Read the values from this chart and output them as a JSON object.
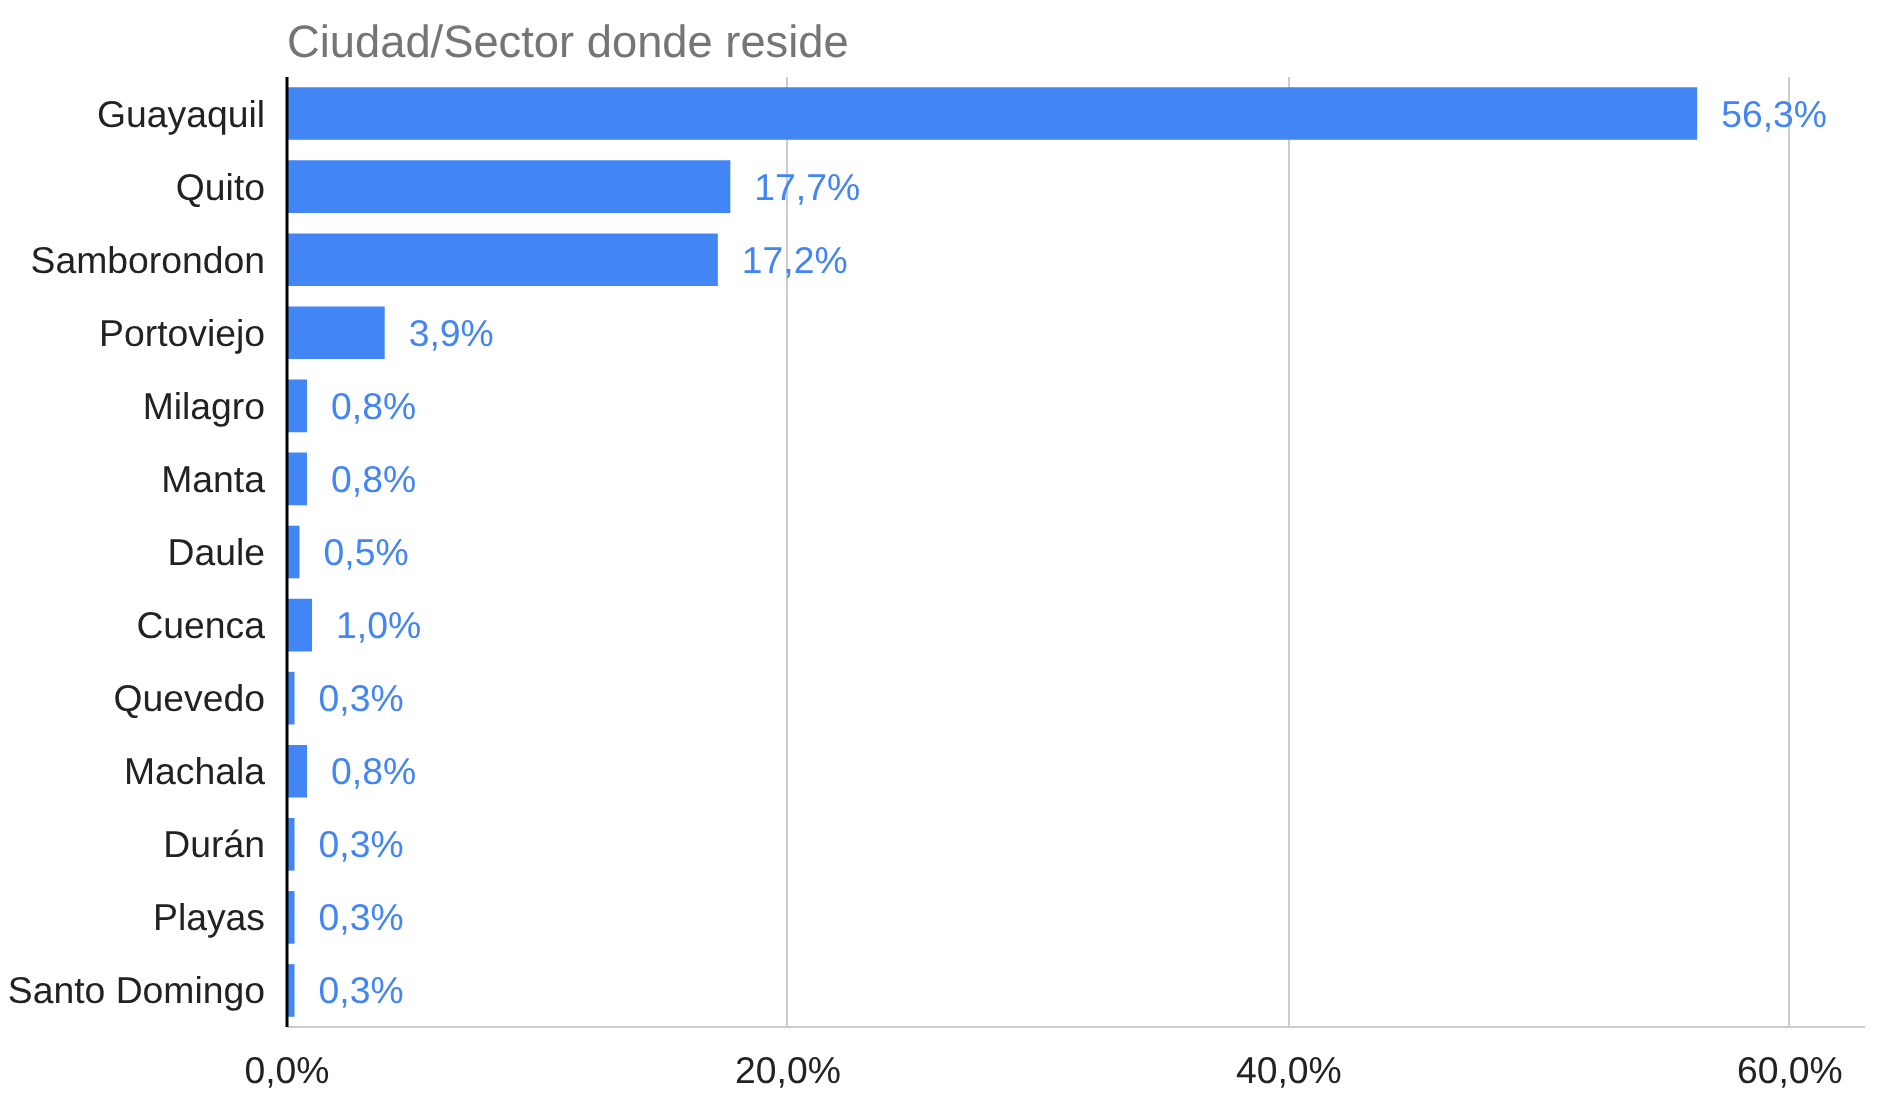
{
  "chart_data": {
    "type": "bar",
    "orientation": "horizontal",
    "title": "Ciudad/Sector donde reside",
    "categories": [
      "Guayaquil",
      "Quito",
      "Samborondon",
      "Portoviejo",
      "Milagro",
      "Manta",
      "Daule",
      "Cuenca",
      "Quevedo",
      "Machala",
      "Durán",
      "Playas",
      "Santo Domingo"
    ],
    "values": [
      56.3,
      17.7,
      17.2,
      3.9,
      0.8,
      0.8,
      0.5,
      1.0,
      0.3,
      0.8,
      0.3,
      0.3,
      0.3
    ],
    "value_labels": [
      "56,3%",
      "17,7%",
      "17,2%",
      "3,9%",
      "0,8%",
      "0,8%",
      "0,5%",
      "1,0%",
      "0,3%",
      "0,8%",
      "0,3%",
      "0,3%",
      "0,3%"
    ],
    "color": "#4285f4",
    "xlim": [
      0,
      63
    ],
    "xticks": [
      {
        "value": 0,
        "label": "0,0%"
      },
      {
        "value": 20,
        "label": "20,0%"
      },
      {
        "value": 40,
        "label": "40,0%"
      },
      {
        "value": 60,
        "label": "60,0%"
      }
    ],
    "grid": "x"
  }
}
